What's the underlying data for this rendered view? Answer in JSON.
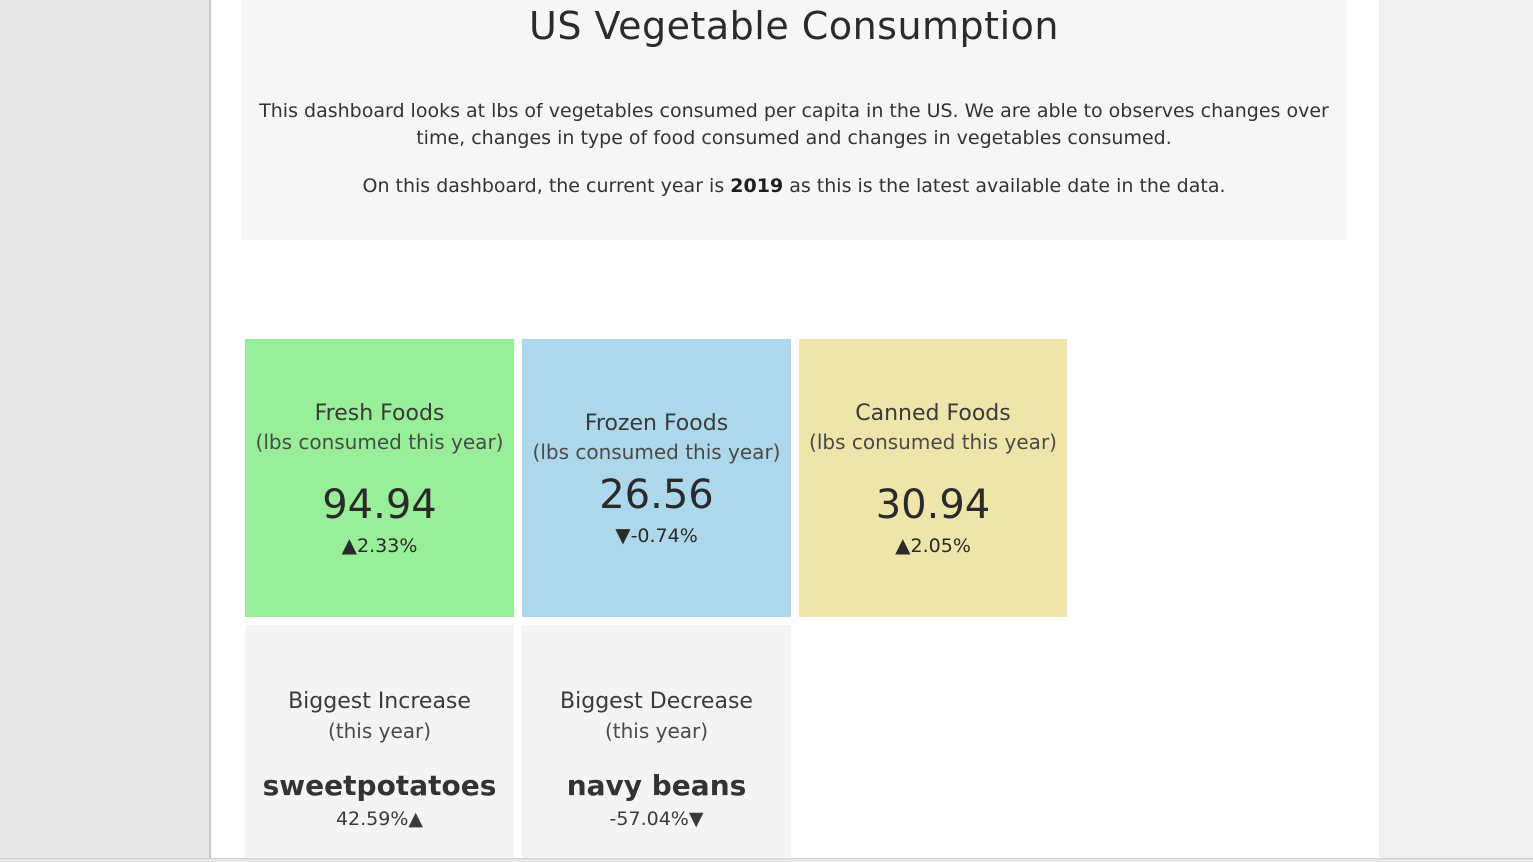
{
  "header": {
    "title": "US Vegetable Consumption",
    "description": "This dashboard looks at lbs of vegetables consumed per capita in the US. We are able to observes changes over time, changes in type of food consumed and changes in vegetables consumed.",
    "current_year_prefix": "On this dashboard, the current year is",
    "current_year": "2019",
    "current_year_suffix": "as this is the latest available date in the data."
  },
  "kpis": {
    "fresh": {
      "label": "Fresh Foods",
      "sub": "(lbs consumed this year)",
      "value": "94.94",
      "arrow": "▲",
      "change": "2.33%",
      "color": "#99ee99"
    },
    "frozen": {
      "label": "Frozen Foods",
      "sub": "(lbs consumed this year)",
      "value": "26.56",
      "arrow": "▼",
      "change": "-0.74%",
      "color": "#add8eb"
    },
    "canned": {
      "label": "Canned Foods",
      "sub": "(lbs consumed this year)",
      "value": "30.94",
      "arrow": "▲",
      "change": "2.05%",
      "color": "#eee5ab"
    }
  },
  "highlights": {
    "increase": {
      "label": "Biggest Increase",
      "sub": "(this year)",
      "name": "sweetpotatoes",
      "pct": "42.59%",
      "arrow": "▲"
    },
    "decrease": {
      "label": "Biggest Decrease",
      "sub": "(this year)",
      "name": "navy beans",
      "pct": "-57.04%",
      "arrow": "▼"
    }
  }
}
